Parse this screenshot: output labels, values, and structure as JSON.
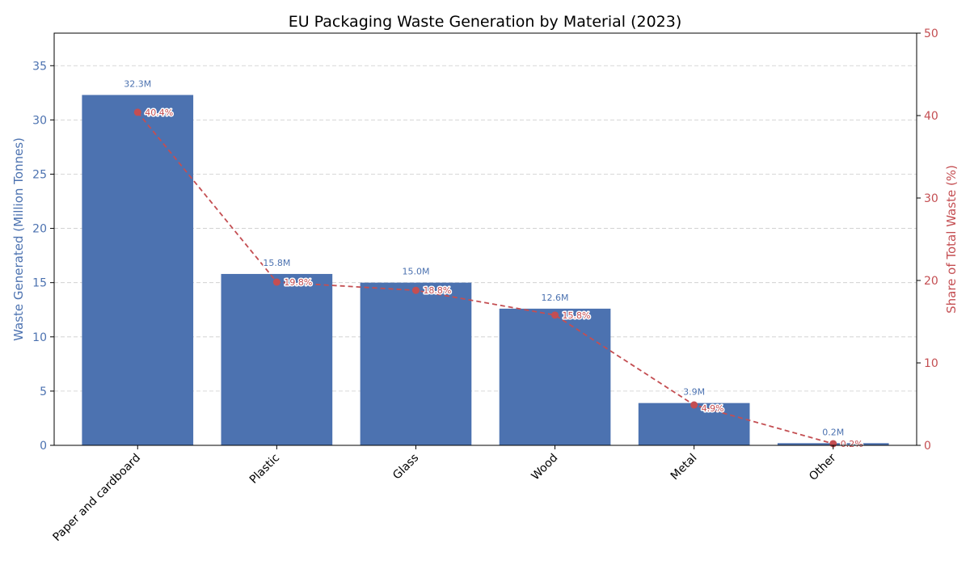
{
  "chart_data": {
    "type": "bar+line",
    "title": "EU Packaging Waste Generation by Material (2023)",
    "categories": [
      "Paper and cardboard",
      "Plastic",
      "Glass",
      "Wood",
      "Metal",
      "Other"
    ],
    "series": [
      {
        "name": "Waste Generated (Million Tonnes)",
        "type": "bar",
        "axis": "left",
        "values": [
          32.3,
          15.8,
          15.0,
          12.6,
          3.9,
          0.2
        ],
        "labels": [
          "32.3M",
          "15.8M",
          "15.0M",
          "12.6M",
          "3.9M",
          "0.2M"
        ],
        "color": "#4c72b0"
      },
      {
        "name": "Share of Total Waste (%)",
        "type": "line",
        "axis": "right",
        "values": [
          40.4,
          19.8,
          18.8,
          15.8,
          4.9,
          0.2
        ],
        "labels": [
          "40.4%",
          "19.8%",
          "18.8%",
          "15.8%",
          "4.9%",
          "0.2%"
        ],
        "color": "#c44e52"
      }
    ],
    "ylabel": "Waste Generated (Million Tonnes)",
    "y2label": "Share of Total Waste (%)",
    "ylim": [
      0,
      38
    ],
    "y2lim": [
      0,
      50
    ],
    "yticks": [
      0,
      5,
      10,
      15,
      20,
      25,
      30,
      35
    ],
    "y2ticks": [
      0,
      10,
      20,
      30,
      40,
      50
    ],
    "grid": true
  }
}
